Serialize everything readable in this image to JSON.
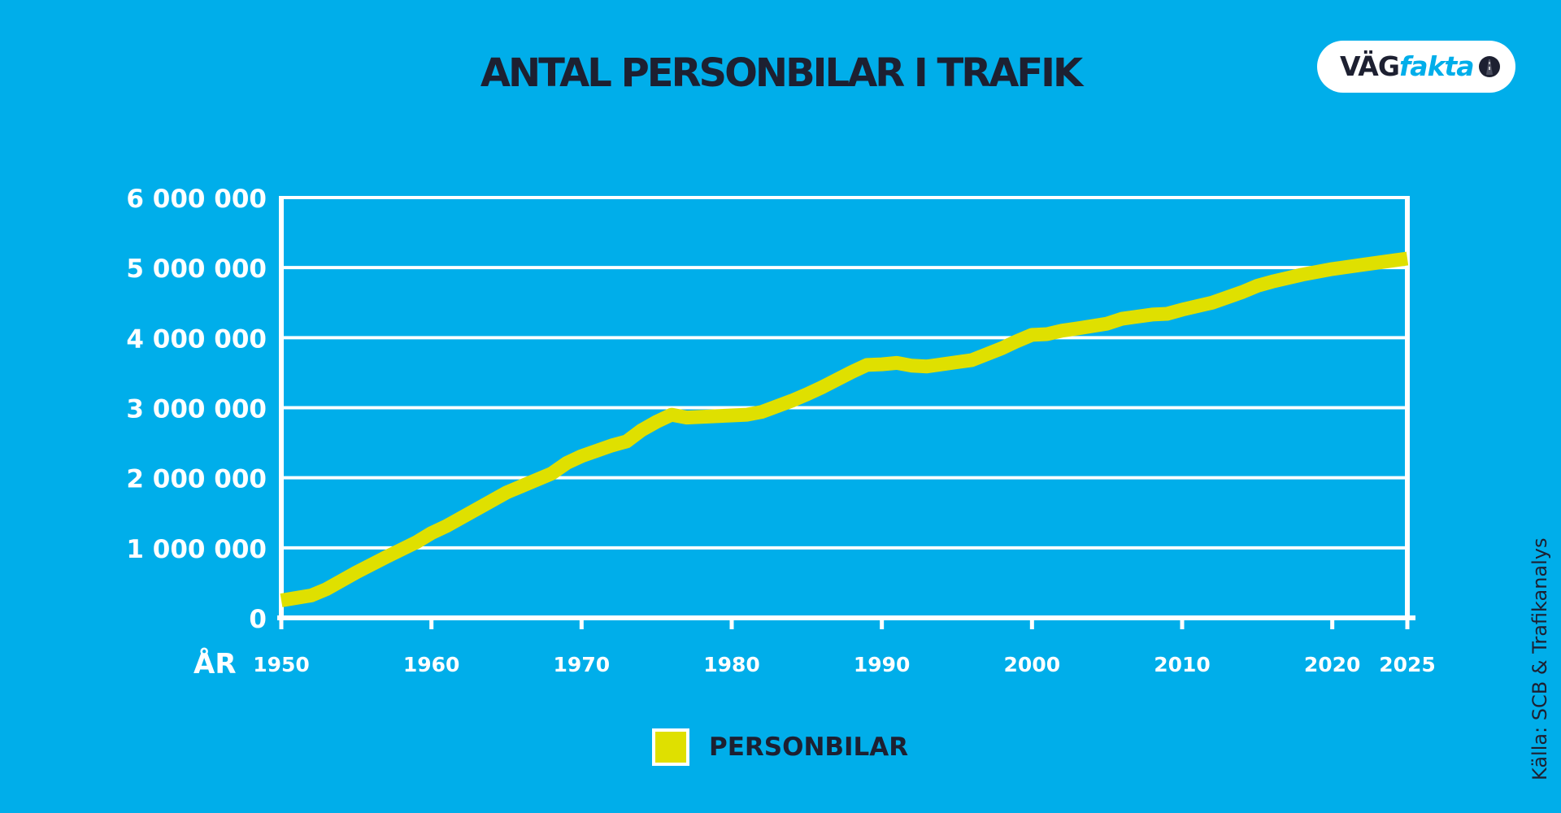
{
  "chart_data": {
    "type": "line",
    "title": "ANTAL PERSONBILAR I TRAFIK",
    "xlabel": "ÅR",
    "ylabel": "",
    "xlim": [
      1950,
      2025
    ],
    "ylim": [
      0,
      6000000
    ],
    "x_ticks": [
      1950,
      1960,
      1970,
      1980,
      1990,
      2000,
      2010,
      2020,
      2025
    ],
    "x_tick_labels": [
      "1950",
      "1960",
      "1970",
      "1980",
      "1990",
      "2000",
      "2010",
      "2020",
      "2025"
    ],
    "y_ticks": [
      0,
      1000000,
      2000000,
      3000000,
      4000000,
      5000000,
      6000000
    ],
    "y_tick_labels": [
      "0",
      "1 000 000",
      "2 000 000",
      "3 000 000",
      "4 000 000",
      "5 000 000",
      "6 000 000"
    ],
    "grid": true,
    "legend_position": "bottom-center",
    "series": [
      {
        "name": "PERSONBILAR",
        "color": "#dfe000",
        "x": [
          1950,
          1952,
          1953,
          1955,
          1957,
          1959,
          1960,
          1961,
          1963,
          1965,
          1966,
          1968,
          1969,
          1970,
          1972,
          1973,
          1974,
          1975,
          1976,
          1977,
          1978,
          1980,
          1981,
          1982,
          1984,
          1985,
          1986,
          1988,
          1989,
          1990,
          1991,
          1992,
          1993,
          1995,
          1996,
          1998,
          1999,
          2000,
          2001,
          2002,
          2003,
          2005,
          2006,
          2008,
          2009,
          2010,
          2012,
          2014,
          2015,
          2016,
          2018,
          2020,
          2022,
          2024,
          2025
        ],
        "y": [
          250000,
          320000,
          410000,
          650000,
          870000,
          1080000,
          1210000,
          1310000,
          1550000,
          1790000,
          1880000,
          2060000,
          2210000,
          2310000,
          2460000,
          2520000,
          2680000,
          2800000,
          2900000,
          2860000,
          2870000,
          2890000,
          2900000,
          2940000,
          3100000,
          3190000,
          3290000,
          3510000,
          3610000,
          3620000,
          3640000,
          3600000,
          3590000,
          3650000,
          3680000,
          3850000,
          3950000,
          4040000,
          4050000,
          4100000,
          4130000,
          4200000,
          4270000,
          4330000,
          4340000,
          4400000,
          4500000,
          4650000,
          4740000,
          4800000,
          4900000,
          4980000,
          5040000,
          5100000,
          5130000
        ]
      }
    ]
  },
  "logo": {
    "part1": "VÄG",
    "part2": "fakta"
  },
  "source_note": "Källa: SCB & Trafikanalys",
  "colors": {
    "background": "#00aeea",
    "line": "#dfe000",
    "grid": "#ffffff",
    "text_dark": "#1d2031",
    "text_light": "#ffffff"
  }
}
